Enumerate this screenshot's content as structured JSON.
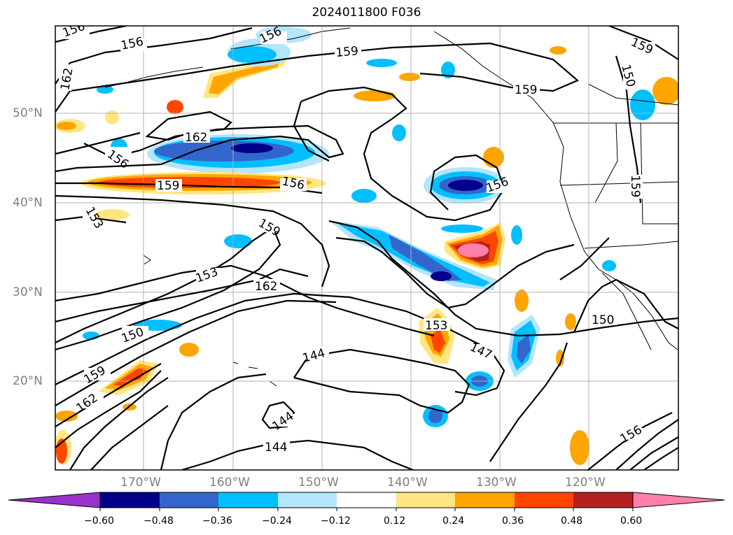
{
  "title": "2024011800 F036",
  "map": {
    "lat_labels": [
      "50°N",
      "40°N",
      "30°N",
      "20°N"
    ],
    "lon_labels": [
      "170°W",
      "160°W",
      "150°W",
      "140°W",
      "130°W",
      "120°W"
    ],
    "contour_labels": [
      "156",
      "156",
      "159",
      "156",
      "162",
      "156",
      "159",
      "156",
      "159",
      "156",
      "159",
      "153",
      "162",
      "150",
      "159",
      "162",
      "144",
      "153",
      "147",
      "150",
      "144",
      "144",
      "159",
      "162",
      "150",
      "153",
      "159",
      "156"
    ]
  },
  "colorbar": {
    "labels": [
      "−0.60",
      "−0.48",
      "−0.36",
      "−0.24",
      "−0.12",
      "0.12",
      "0.24",
      "0.36",
      "0.48",
      "0.60"
    ],
    "colors": [
      "#9932cc",
      "#00008b",
      "#3366cc",
      "#00bfff",
      "#b3e5fc",
      "#ffffff",
      "#ffe680",
      "#ffa500",
      "#ff4500",
      "#b22222",
      "#ff80ab"
    ]
  }
}
